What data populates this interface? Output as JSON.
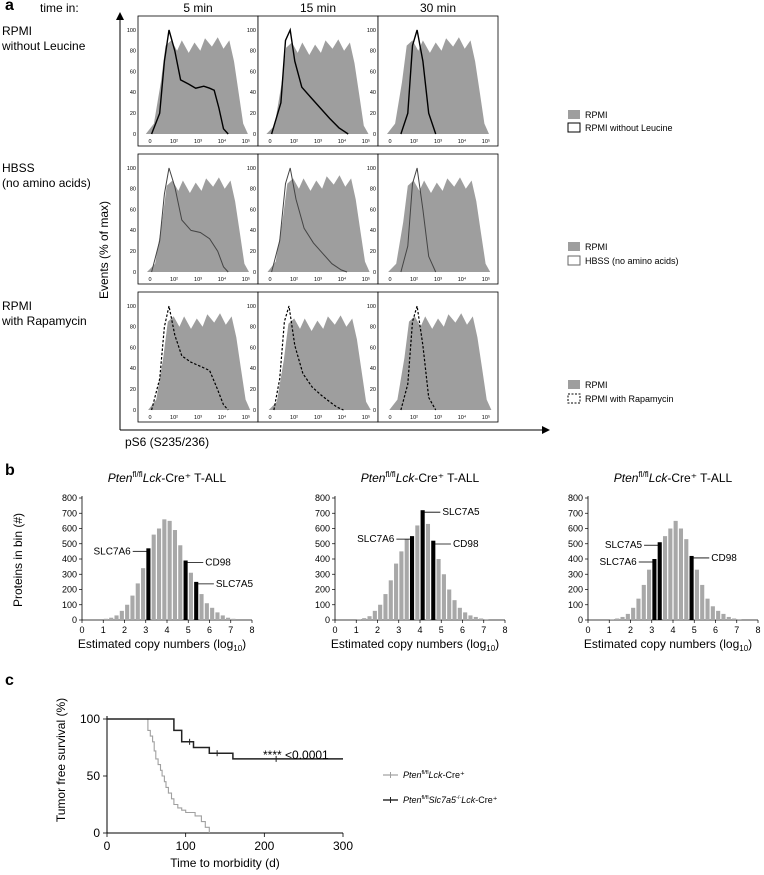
{
  "panel_a": {
    "label": "a",
    "time_in_label": "time in:",
    "col_titles": [
      "5 min",
      "15 min",
      "30 min"
    ],
    "row_labels": [
      [
        "RPMI",
        "without Leucine"
      ],
      [
        "HBSS",
        "(no amino acids)"
      ],
      [
        "RPMI",
        "with Rapamycin"
      ]
    ],
    "y_axis_label": "Events (% of max)",
    "x_axis_label": "pS6 (S235/236)",
    "y_ticks": [
      "0",
      "20",
      "40",
      "60",
      "80",
      "100"
    ],
    "x_ticks": [
      "0",
      "10²",
      "10³",
      "10⁴",
      "10⁵"
    ],
    "legends": [
      {
        "ref": "RPMI",
        "cond": "RPMI without Leucine"
      },
      {
        "ref": "RPMI",
        "cond": "HBSS (no amino acids)"
      },
      {
        "ref": "RPMI",
        "cond": "RPMI with Rapamycin"
      }
    ],
    "colors": {
      "ref_fill": "#9e9e9e",
      "line": "#000000",
      "line2": "#444444"
    }
  },
  "panel_b": {
    "label": "b",
    "xlabel": "Estimated copy numbers (log",
    "xlabel_sub": "10",
    "ylabel": "Proteins in bin (#)",
    "yticks": [
      "0",
      "100",
      "200",
      "300",
      "400",
      "500",
      "600",
      "700",
      "800"
    ],
    "xticks": [
      "0",
      "1",
      "2",
      "3",
      "4",
      "5",
      "6",
      "7",
      "8"
    ],
    "titles": [
      {
        "gene": "Pten",
        "sup": "fl/fl",
        "gene2": "Lck",
        "rest": "-Cre⁺ T-ALL"
      },
      {
        "gene": "Pten",
        "sup": "fl/fl",
        "gene2": "Lck",
        "rest": "-Cre⁺ T-ALL"
      },
      {
        "gene": "Pten",
        "sup": "fl/fl",
        "gene2": "Lck",
        "rest": "-Cre⁺ T-ALL"
      }
    ],
    "annotations": [
      [
        "SLC7A6",
        "CD98",
        "SLC7A5"
      ],
      [
        "SLC7A6",
        "SLC7A5",
        "CD98"
      ],
      [
        "SLC7A5",
        "SLC7A6",
        "CD98"
      ]
    ]
  },
  "panel_c": {
    "label": "c",
    "ylabel": "Tumor free survival (%)",
    "xlabel": "Time to morbidity (d)",
    "xticks": [
      "0",
      "100",
      "200",
      "300"
    ],
    "yticks": [
      "0",
      "50",
      "100"
    ],
    "pvalue": "**** <0.0001",
    "legend": [
      {
        "gene": "Pten",
        "sup": "fl/fl",
        "gene2": "Lck",
        "rest": "-Cre⁺"
      },
      {
        "gene": "Pten",
        "sup": "fl/fl",
        "gene2": "Slc7a5",
        "sup2": "-/-",
        "gene3": "Lck",
        "rest": "-Cre⁺"
      }
    ],
    "colors": {
      "control": "#a0a0a0",
      "ko": "#222222"
    }
  },
  "chart_data": [
    {
      "type": "bar",
      "title": "Ptenfl/flLck-Cre+ T-ALL",
      "xlabel": "Estimated copy numbers (log10)",
      "ylabel": "Proteins in bin (#)",
      "ylim": [
        0,
        800
      ],
      "xlim": [
        0,
        8
      ],
      "bin_width": 0.25,
      "bin_starts": [
        1.0,
        1.25,
        1.5,
        1.75,
        2.0,
        2.25,
        2.5,
        2.75,
        3.0,
        3.25,
        3.5,
        3.75,
        4.0,
        4.25,
        4.5,
        4.75,
        5.0,
        5.25,
        5.5,
        5.75,
        6.0,
        6.25,
        6.5,
        6.75,
        7.0
      ],
      "values": [
        8,
        15,
        30,
        60,
        100,
        160,
        240,
        340,
        470,
        560,
        600,
        660,
        650,
        590,
        490,
        390,
        310,
        250,
        170,
        110,
        80,
        50,
        30,
        15,
        8
      ],
      "highlighted": {
        "SLC7A6": 3.0,
        "CD98": 4.75,
        "SLC7A5": 5.25
      }
    },
    {
      "type": "bar",
      "title": "Ptenfl/flLck-Cre+ T-ALL",
      "xlabel": "Estimated copy numbers (log10)",
      "ylabel": "Proteins in bin (#)",
      "ylim": [
        0,
        800
      ],
      "xlim": [
        0,
        8
      ],
      "bin_width": 0.25,
      "bin_starts": [
        1.0,
        1.25,
        1.5,
        1.75,
        2.0,
        2.25,
        2.5,
        2.75,
        3.0,
        3.25,
        3.5,
        3.75,
        4.0,
        4.25,
        4.5,
        4.75,
        5.0,
        5.25,
        5.5,
        5.75,
        6.0,
        6.25,
        6.5,
        6.75,
        7.0
      ],
      "values": [
        5,
        12,
        25,
        60,
        100,
        170,
        260,
        370,
        450,
        530,
        550,
        620,
        720,
        630,
        520,
        400,
        300,
        200,
        130,
        80,
        50,
        30,
        20,
        10,
        5
      ],
      "highlighted": {
        "SLC7A6": 3.5,
        "SLC7A5": 4.0,
        "CD98": 4.5
      }
    },
    {
      "type": "bar",
      "title": "Ptenfl/flLck-Cre+ T-ALL",
      "xlabel": "Estimated copy numbers (log10)",
      "ylabel": "Proteins in bin (#)",
      "ylim": [
        0,
        800
      ],
      "xlim": [
        0,
        8
      ],
      "bin_width": 0.25,
      "bin_starts": [
        1.0,
        1.25,
        1.5,
        1.75,
        2.0,
        2.25,
        2.5,
        2.75,
        3.0,
        3.25,
        3.5,
        3.75,
        4.0,
        4.25,
        4.5,
        4.75,
        5.0,
        5.25,
        5.5,
        5.75,
        6.0,
        6.25,
        6.5,
        6.75,
        7.0
      ],
      "values": [
        5,
        10,
        20,
        40,
        80,
        140,
        230,
        330,
        400,
        510,
        550,
        600,
        650,
        600,
        530,
        420,
        330,
        230,
        140,
        90,
        60,
        40,
        20,
        10,
        5
      ],
      "highlighted": {
        "SLC7A6": 3.0,
        "SLC7A5": 3.25,
        "CD98": 4.75
      }
    },
    {
      "type": "line",
      "title": "Tumor free survival",
      "xlabel": "Time to morbidity (d)",
      "ylabel": "Tumor free survival (%)",
      "xlim": [
        0,
        300
      ],
      "ylim": [
        0,
        100
      ],
      "series": [
        {
          "name": "Ptenfl/flLck-Cre+",
          "x": [
            0,
            48,
            52,
            55,
            58,
            60,
            62,
            65,
            68,
            70,
            73,
            75,
            78,
            82,
            85,
            90,
            95,
            100,
            105,
            112,
            120,
            125,
            130
          ],
          "y": [
            100,
            100,
            90,
            85,
            80,
            72,
            65,
            60,
            55,
            50,
            45,
            40,
            35,
            30,
            25,
            22,
            20,
            18,
            18,
            15,
            10,
            5,
            0
          ]
        },
        {
          "name": "Ptenfl/flSlc7a5-/-Lck-Cre+",
          "x": [
            0,
            75,
            85,
            95,
            110,
            130,
            160,
            300
          ],
          "y": [
            100,
            100,
            90,
            80,
            75,
            70,
            65,
            65
          ]
        }
      ],
      "annotations": [
        "**** <0.0001"
      ]
    }
  ]
}
